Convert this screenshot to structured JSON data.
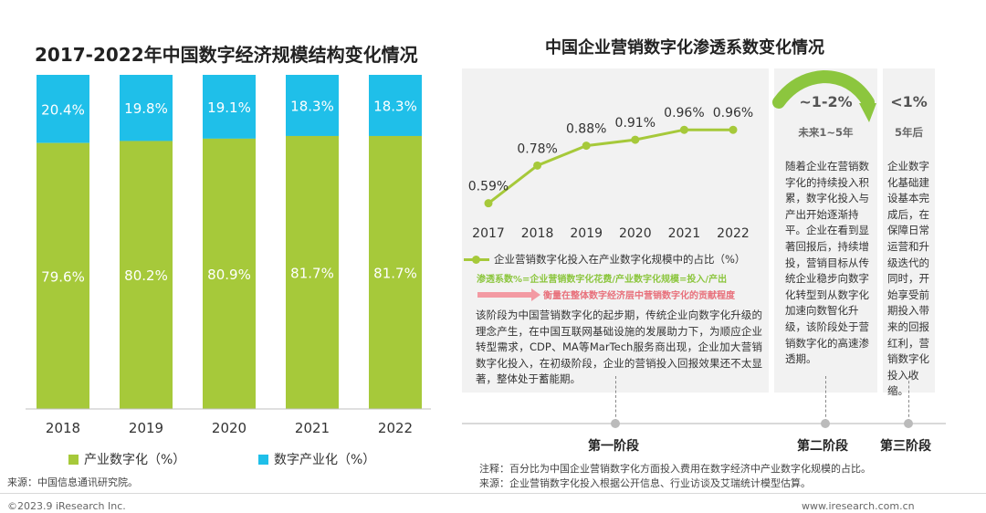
{
  "left": {
    "title": "2017-2022年中国数字经济规模结构变化情况",
    "legend": [
      "产业数字化（%）",
      "数字产业化（%）"
    ],
    "source": "来源：中国信息通讯研究院。"
  },
  "right": {
    "title": "中国企业营销数字化渗透系数变化情况",
    "legend_label": "企业营销数字化投入在产业数字化规模中的占比（%）",
    "formula": "渗透系数%=企业营销数字化花费/产业数字化规模=投入/产出",
    "measure_note": "衡量在整体数字经济层中营销数字化的贡献程度",
    "stage1": {
      "label": "第一阶段",
      "desc": "该阶段为中国营销数字化的起步期，传统企业向数字化升级的理念产生，在中国互联网基础设施的发展助力下，为顺应企业转型需求，CDP、MA等MarTech服务商出现，企业加大营销数字化投入，在初级阶段，企业的营销投入回报效果还不太显著，整体处于蓄能期。"
    },
    "stage2": {
      "label": "第二阶段",
      "rate": "~1-2%",
      "period": "未来1~5年",
      "desc": "随着企业在营销数字化的持续投入积累，数字化投入与产出开始逐渐持平。企业在看到显著回报后，持续增投，营销目标从传统企业稳步向数字化转型到从数字化加速向数智化升级，该阶段处于营销数字化的高速渗透期。"
    },
    "stage3": {
      "label": "第三阶段",
      "rate": "<1%",
      "period": "5年后",
      "desc": "企业数字化基础建设基本完成后，在保障日常运营和升级迭代的同时，开始享受前期投入带来的回报红利，营销数字化投入收缩。"
    },
    "note": "注释：百分比为中国企业营销数字化方面投入费用在数字经济中产业数字化规模的占比。",
    "source": "来源：企业营销数字化投入根据公开信息、行业访谈及艾瑞统计模型估算。"
  },
  "footer": {
    "copyright": "©2023.9 iResearch Inc.",
    "website": "www.iresearch.com.cn"
  },
  "colors": {
    "industrial_digitalization": "#a6c93a",
    "digital_industrialization": "#1fbfe9",
    "line": "#a6c93a",
    "stage2_arrow": "#8cc63e",
    "formula": "#8cc63e",
    "note_arrow": "#f39aa3"
  },
  "chart_data": [
    {
      "type": "bar",
      "stacked": true,
      "title": "2017-2022年中国数字经济规模结构变化情况",
      "categories": [
        "2018",
        "2019",
        "2020",
        "2021",
        "2022"
      ],
      "series": [
        {
          "name": "产业数字化（%）",
          "values": [
            79.6,
            80.2,
            80.9,
            81.7,
            81.7
          ]
        },
        {
          "name": "数字产业化（%）",
          "values": [
            20.4,
            19.8,
            19.1,
            18.3,
            18.3
          ]
        }
      ],
      "value_labels": {
        "industrial": [
          "79.6%",
          "80.2%",
          "80.9%",
          "81.7%",
          "81.7%"
        ],
        "digital": [
          "20.4%",
          "19.8%",
          "19.1%",
          "18.3%",
          "18.3%"
        ]
      },
      "ylim": [
        0,
        100
      ],
      "grid": false,
      "legend_position": "bottom"
    },
    {
      "type": "line",
      "title": "中国企业营销数字化渗透系数变化情况",
      "categories": [
        "2017",
        "2018",
        "2019",
        "2020",
        "2021",
        "2022"
      ],
      "series": [
        {
          "name": "企业营销数字化投入在产业数字化规模中的占比（%）",
          "values": [
            0.59,
            0.78,
            0.88,
            0.91,
            0.96,
            0.96
          ]
        }
      ],
      "value_labels": [
        "0.59%",
        "0.78%",
        "0.88%",
        "0.91%",
        "0.96%",
        "0.96%"
      ],
      "ylim": [
        0.4,
        1.2
      ],
      "grid": false,
      "legend_position": "bottom"
    }
  ]
}
